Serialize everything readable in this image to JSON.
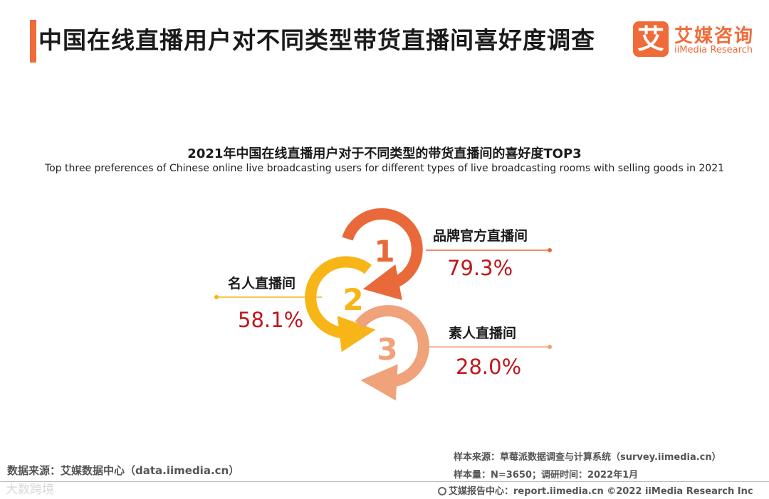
{
  "header": {
    "title": "中国在线直播用户对不同类型带货直播间喜好度调查",
    "logo_mark": "艾",
    "logo_cn": "艾媒咨询",
    "logo_en": "iiMedia Research"
  },
  "chart_data": {
    "type": "ranking",
    "title": "2021年中国在线直播用户对于不同类型的带货直播间的喜好度TOP3",
    "subtitle": "Top three preferences of Chinese online live broadcasting users for different types of live broadcasting rooms with selling goods in 2021",
    "items": [
      {
        "rank": "1",
        "label": "品牌官方直播间",
        "value": 79.3,
        "value_label": "79.3%",
        "color": "#e8693a"
      },
      {
        "rank": "2",
        "label": "名人直播间",
        "value": 58.1,
        "value_label": "58.1%",
        "color": "#f7b518"
      },
      {
        "rank": "3",
        "label": "素人直播间",
        "value": 28.0,
        "value_label": "28.0%",
        "color": "#f0a27a"
      }
    ],
    "value_color": "#c0161c"
  },
  "footer": {
    "data_source": "数据来源：艾媒数据中心（data.iimedia.cn）",
    "watermark": "大数跨境",
    "sample_source": "样本来源：草莓派数据调查与计算系统（survey.iimedia.cn）",
    "sample_size": "样本量：N=3650；调研时间：2022年1月",
    "report_center": "艾媒报告中心：report.iimedia.cn   ©2022  iiMedia Research  Inc"
  }
}
